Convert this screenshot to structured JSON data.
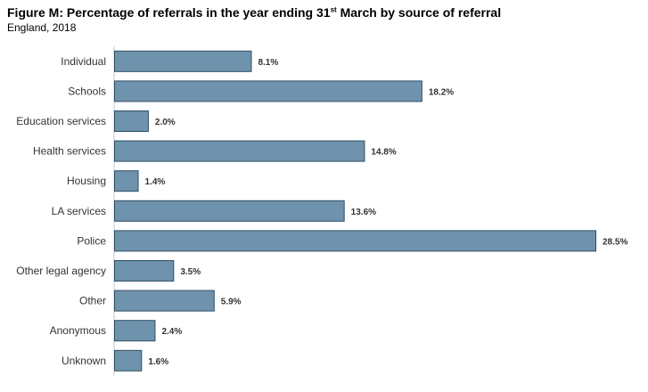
{
  "header": {
    "title_prefix": "Figure M: Percentage of referrals in the year ending 31",
    "title_sup": "st",
    "title_suffix": " March by source of referral",
    "subtitle": "England, 2018"
  },
  "chart_data": {
    "type": "bar",
    "orientation": "horizontal",
    "title": "Figure M: Percentage of referrals in the year ending 31st March by source of referral",
    "subtitle": "England, 2018",
    "categories": [
      "Individual",
      "Schools",
      "Education services",
      "Health services",
      "Housing",
      "LA services",
      "Police",
      "Other legal agency",
      "Other",
      "Anonymous",
      "Unknown"
    ],
    "values": [
      8.1,
      18.2,
      2.0,
      14.8,
      1.4,
      13.6,
      28.5,
      3.5,
      5.9,
      2.4,
      1.6
    ],
    "value_labels": [
      "8.1%",
      "18.2%",
      "2.0%",
      "14.8%",
      "1.4%",
      "13.6%",
      "28.5%",
      "3.5%",
      "5.9%",
      "2.4%",
      "1.6%"
    ],
    "xlim": [
      0,
      28.5
    ],
    "grid": false,
    "colors": {
      "bar_fill": "#6f93ad",
      "bar_stroke": "#2f4f66"
    }
  }
}
